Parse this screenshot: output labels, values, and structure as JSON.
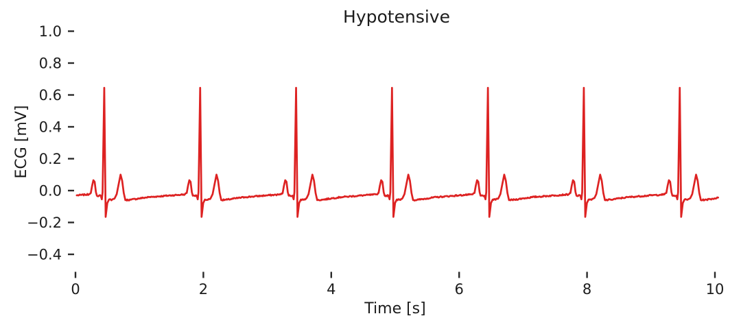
{
  "style": {
    "background": "#ffffff",
    "text_color": "#1c1c1c",
    "tick_color": "#2a2a2a",
    "line_color": "#dd2222"
  },
  "chart_data": {
    "type": "line",
    "title": "Hypotensive",
    "xlabel": "Time [s]",
    "ylabel": "ECG [mV]",
    "xlim": [
      0,
      10.4
    ],
    "ylim": [
      -0.51,
      1.02
    ],
    "grid": false,
    "legend": false,
    "xtick_values": [
      0,
      2,
      4,
      6,
      8,
      10
    ],
    "xtick_labels": [
      "0",
      "2",
      "4",
      "6",
      "8",
      "10"
    ],
    "ytick_values": [
      1.0,
      0.8,
      0.6,
      0.4,
      0.2,
      0.0,
      -0.2,
      -0.4
    ],
    "ytick_labels": [
      "1.0",
      "0.8",
      "0.6",
      "0.4",
      "0.2",
      "0.0",
      "−0.2",
      "−0.4"
    ],
    "series": [
      {
        "name": "ECG",
        "color": "#dd2222",
        "signal": {
          "description": "ECG trace, 7 identical beats, RR interval 1.5 s (~40 bpm)",
          "t_start_s": 0.02,
          "t_end_s": 10.05,
          "baseline_mV": -0.03,
          "end_mV": -0.044,
          "noise_mV": 0.004,
          "rr_interval_s": 1.5,
          "r_peak_amplitude_mV": 0.645,
          "s_trough_mV": -0.165,
          "p_wave_mV": 0.065,
          "t_wave_mV": 0.1,
          "r_peak_times_s": [
            0.45,
            1.95,
            3.45,
            4.95,
            6.45,
            7.95,
            9.45
          ],
          "beat_template_dt_mV": [
            [
              -0.7,
              -0.036
            ],
            [
              -0.45,
              -0.03
            ],
            [
              -0.3,
              -0.026
            ],
            [
              -0.24,
              -0.024
            ],
            [
              -0.21,
              -0.015
            ],
            [
              -0.19,
              0.03
            ],
            [
              -0.17,
              0.065
            ],
            [
              -0.15,
              0.055
            ],
            [
              -0.13,
              -0.01
            ],
            [
              -0.115,
              -0.032
            ],
            [
              -0.055,
              -0.032
            ],
            [
              -0.038,
              -0.055
            ],
            [
              -0.026,
              -0.01
            ],
            [
              0.0,
              0.645
            ],
            [
              0.022,
              -0.165
            ],
            [
              0.048,
              -0.078
            ],
            [
              0.075,
              -0.056
            ],
            [
              0.12,
              -0.058
            ],
            [
              0.165,
              -0.047
            ],
            [
              0.195,
              -0.022
            ],
            [
              0.225,
              0.04
            ],
            [
              0.255,
              0.1
            ],
            [
              0.28,
              0.062
            ],
            [
              0.305,
              -0.015
            ],
            [
              0.33,
              -0.06
            ],
            [
              0.42,
              -0.057
            ],
            [
              0.55,
              -0.049
            ],
            [
              0.7,
              -0.041
            ],
            [
              0.8,
              -0.038
            ]
          ]
        }
      }
    ]
  }
}
